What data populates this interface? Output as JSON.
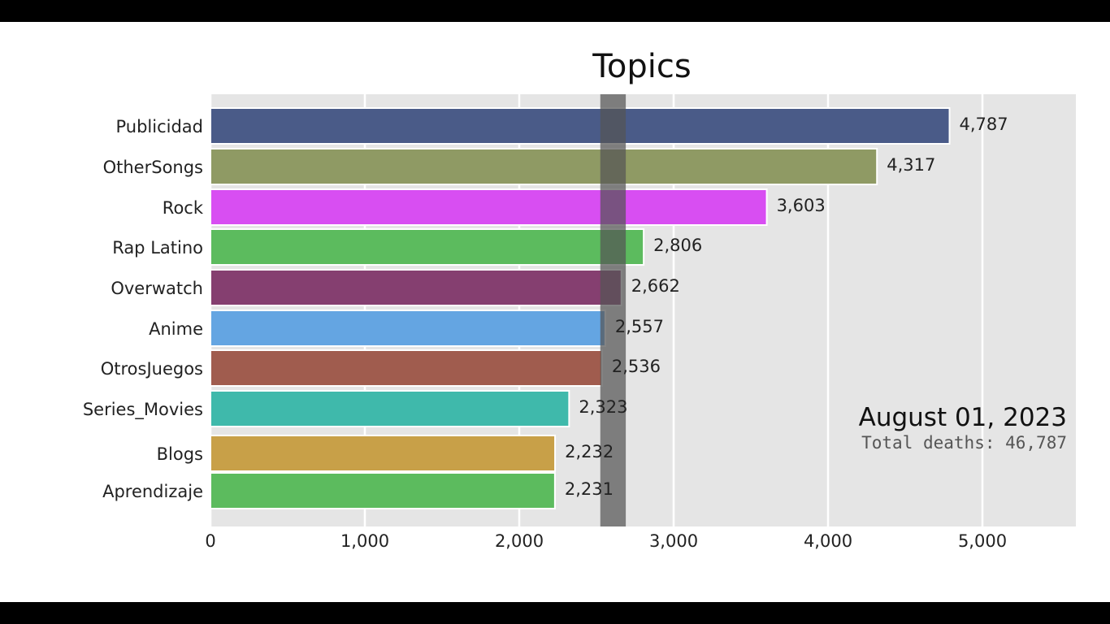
{
  "chart_data": {
    "type": "bar",
    "orientation": "horizontal",
    "title": "Topics",
    "categories": [
      "Publicidad",
      "OtherSongs",
      "Rock",
      "Rap Latino",
      "Overwatch",
      "Anime",
      "OtrosJuegos",
      "Series_Movies",
      "Blogs",
      "Aprendizaje"
    ],
    "values": [
      4787,
      4317,
      3603,
      2806,
      2662,
      2557,
      2536,
      2323,
      2232,
      2231
    ],
    "value_labels": [
      "4,787",
      "4,317",
      "3,603",
      "2,806",
      "2,662",
      "2,557",
      "2,536",
      "2,323",
      "2,232",
      "2,231"
    ],
    "colors": [
      "#4a5b88",
      "#8f9a64",
      "#d84ef2",
      "#5cbb5e",
      "#853f70",
      "#64a5e2",
      "#a05c4e",
      "#3fb9ab",
      "#c8a048",
      "#5cbb5e"
    ],
    "xlim": [
      0,
      5600
    ],
    "xticks": [
      0,
      1000,
      2000,
      3000,
      4000,
      5000
    ],
    "xtick_labels": [
      "0",
      "1,000",
      "2,000",
      "3,000",
      "4,000",
      "5,000"
    ],
    "grid": true,
    "highlight_band": [
      2525,
      2690
    ],
    "date": "August 01, 2023",
    "total_text": "Total deaths: 46,787"
  }
}
